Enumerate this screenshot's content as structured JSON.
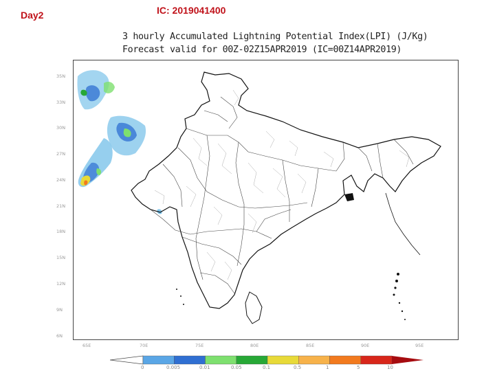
{
  "header": {
    "day_label": "Day2",
    "ic_label": "IC: 2019041400"
  },
  "title": {
    "line1": "3 hourly Accumulated Lightning Potential Index(LPI) (J/Kg)",
    "line2": "Forecast valid for 00Z-02Z15APR2019 (IC=00Z14APR2019)"
  },
  "map": {
    "y_ticks": [
      "35N",
      "33N",
      "30N",
      "27N",
      "24N",
      "21N",
      "18N",
      "15N",
      "12N",
      "9N",
      "6N"
    ],
    "x_ticks": [
      "65E",
      "70E",
      "75E",
      "80E",
      "85E",
      "90E",
      "95E"
    ]
  },
  "colorbar": {
    "labels": [
      "0",
      "0.005",
      "0.01",
      "0.05",
      "0.1",
      "0.5",
      "1",
      "5",
      "10"
    ],
    "colors": [
      "#5aa6e6",
      "#2f6fd2",
      "#7ee06f",
      "#27a836",
      "#e8da38",
      "#f7b24a",
      "#f27a1e",
      "#d8261a",
      "#a60c10"
    ]
  }
}
